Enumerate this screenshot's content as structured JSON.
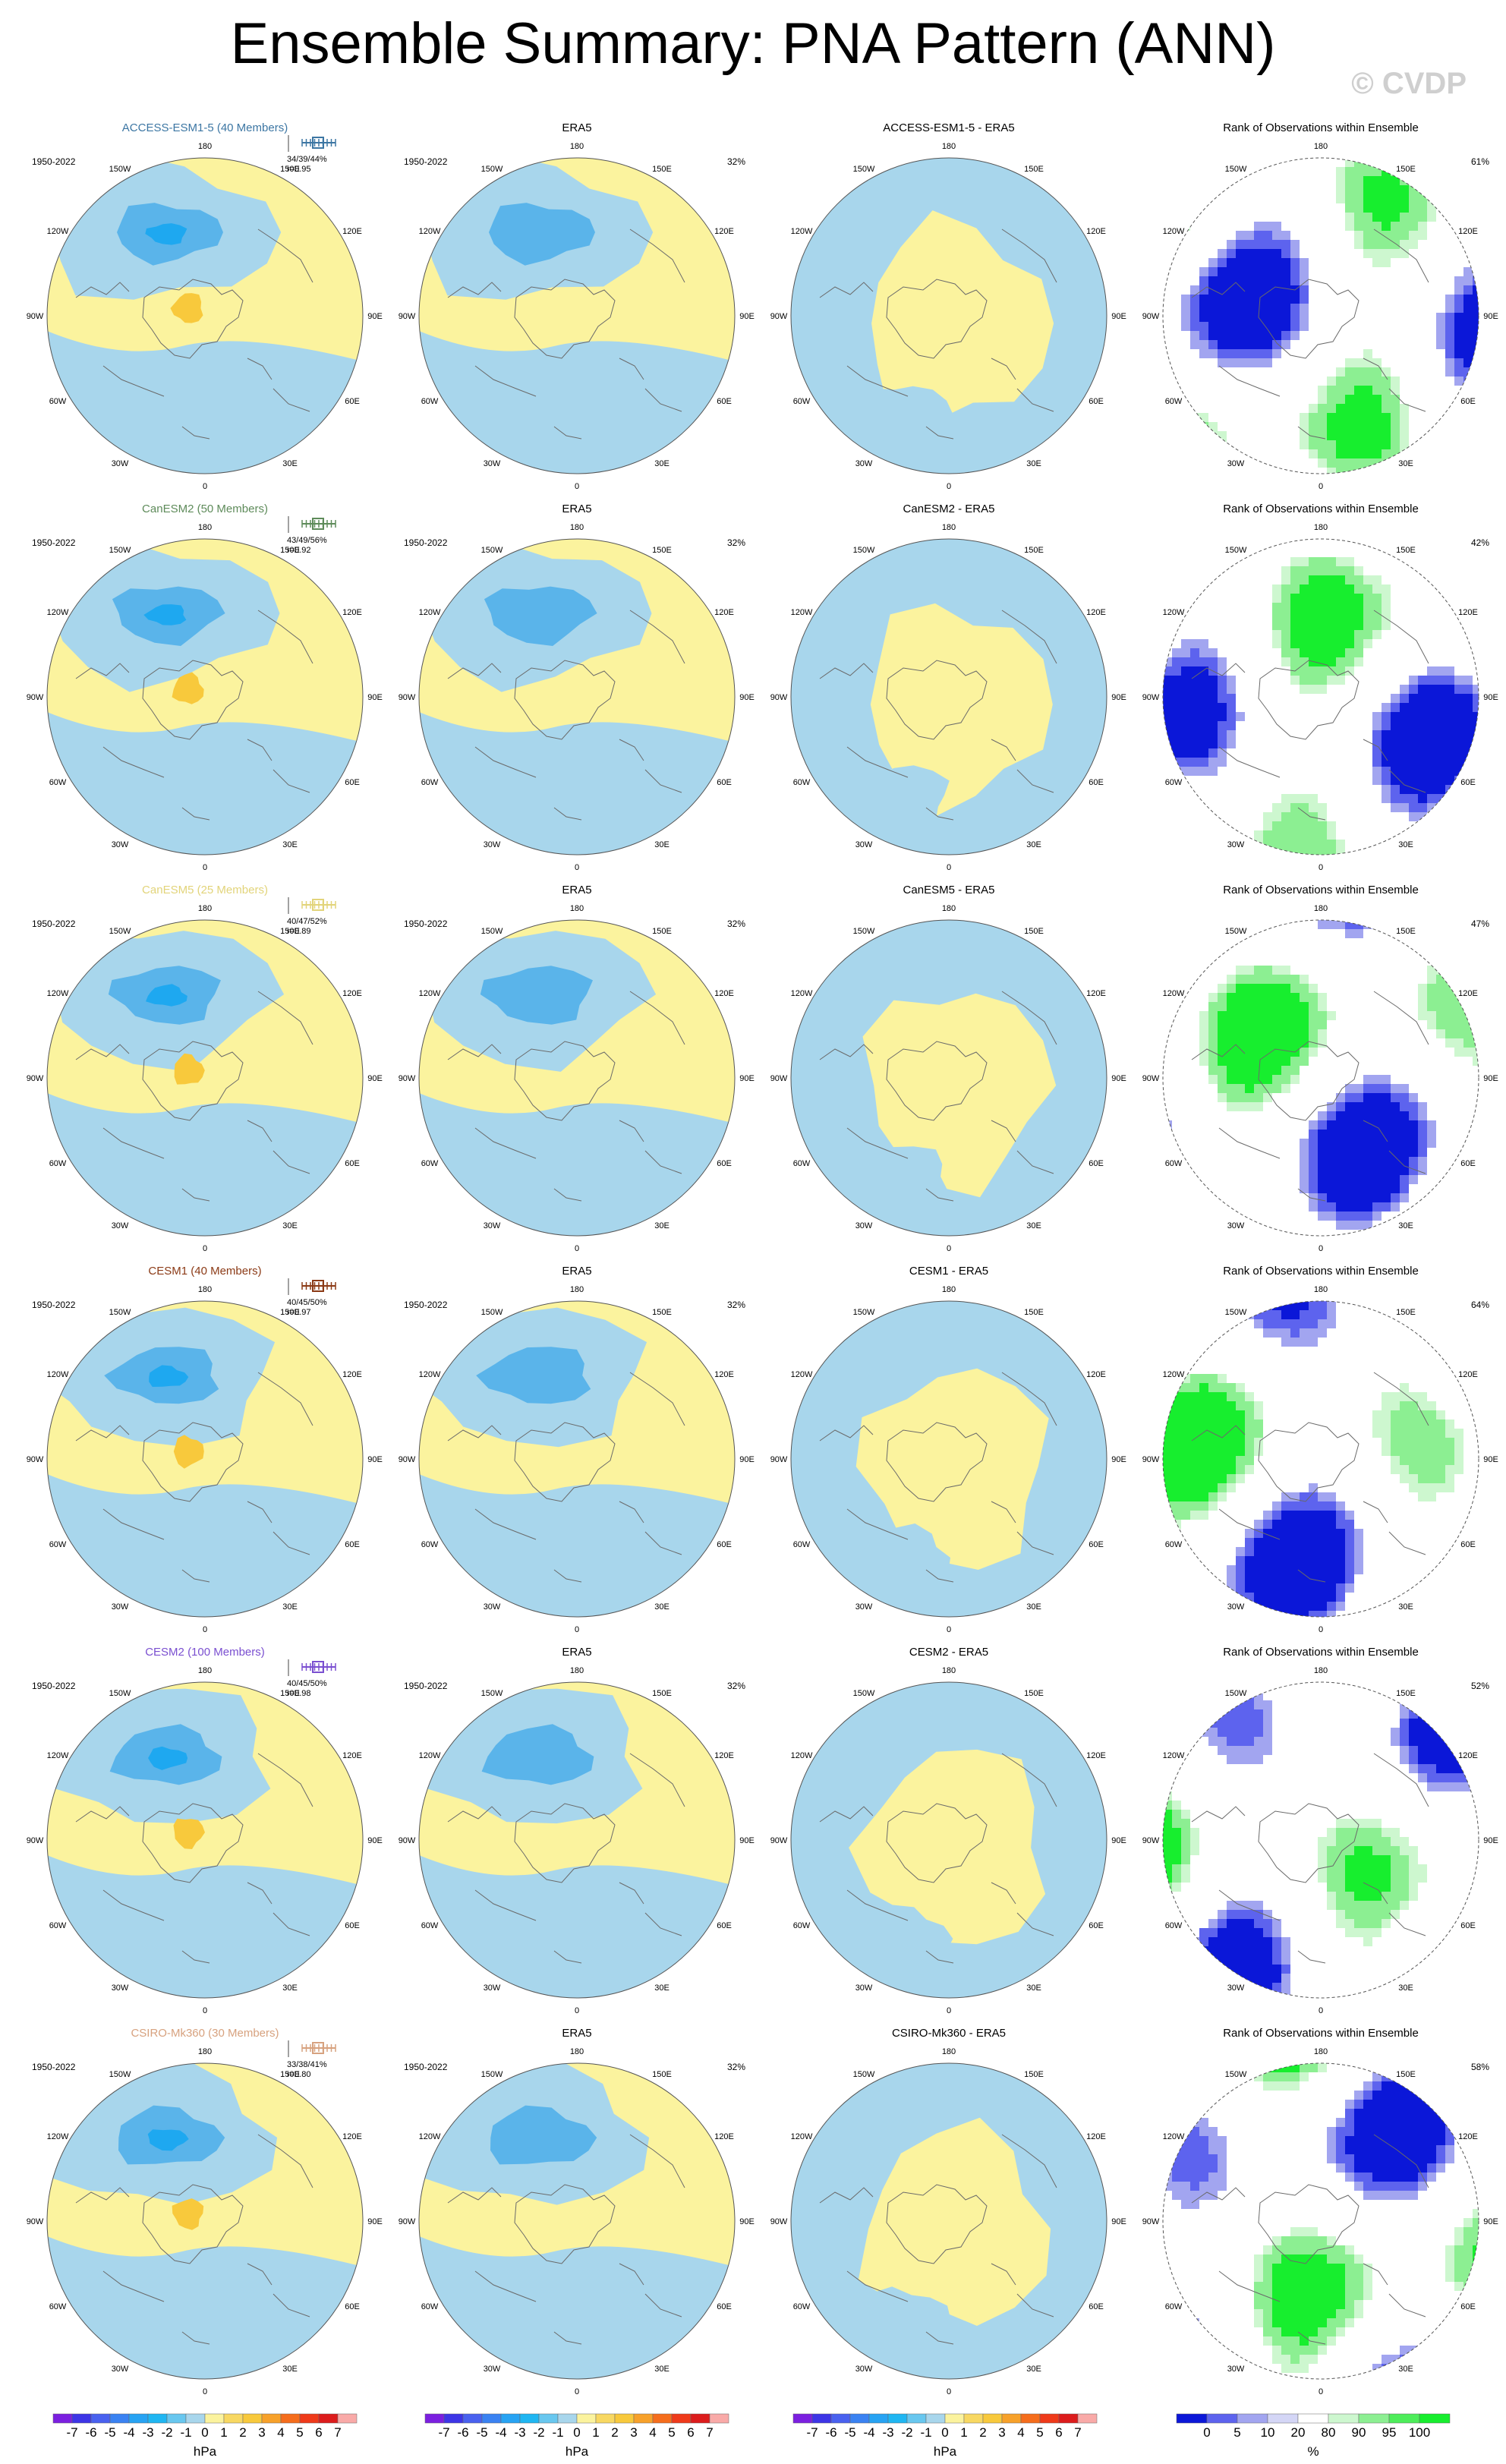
{
  "header": {
    "title": "Ensemble Summary: PNA Pattern (ANN)",
    "watermark": "© CVDP"
  },
  "colors": {
    "light_blue": "#a8d6ec",
    "mid_blue": "#5ab4ea",
    "deep_blue": "#1ea8f0",
    "light_yellow": "#fbf39e",
    "mid_yellow": "#f8c93c",
    "rank_blue": "#0b17d8",
    "rank_green": "#17ee2e"
  },
  "rows": [
    {
      "model": "ACCESS-ESM1-5 (40 Members)",
      "model_color": "#3c76a3",
      "period": "1950-2022",
      "stats_pct": "34/39/44%",
      "stats_r": "r=0.95",
      "era_title": "ERA5",
      "era_period": "1950-2022",
      "era_pct": "32%",
      "diff_title": "ACCESS-ESM1-5 - ERA5",
      "rank_title": "Rank of Observations within Ensemble",
      "rank_pct": "61%"
    },
    {
      "model": "CanESM2 (50 Members)",
      "model_color": "#5e8b5a",
      "period": "1950-2022",
      "stats_pct": "43/49/56%",
      "stats_r": "r=0.92",
      "era_title": "ERA5",
      "era_period": "1950-2022",
      "era_pct": "32%",
      "diff_title": "CanESM2 - ERA5",
      "rank_title": "Rank of Observations within Ensemble",
      "rank_pct": "42%"
    },
    {
      "model": "CanESM5 (25 Members)",
      "model_color": "#e2d47a",
      "period": "1950-2022",
      "stats_pct": "40/47/52%",
      "stats_r": "r=0.89",
      "era_title": "ERA5",
      "era_period": "1950-2022",
      "era_pct": "32%",
      "diff_title": "CanESM5 - ERA5",
      "rank_title": "Rank of Observations within Ensemble",
      "rank_pct": "47%"
    },
    {
      "model": "CESM1 (40 Members)",
      "model_color": "#8b3a16",
      "period": "1950-2022",
      "stats_pct": "40/45/50%",
      "stats_r": "r=0.97",
      "era_title": "ERA5",
      "era_period": "1950-2022",
      "era_pct": "32%",
      "diff_title": "CESM1 - ERA5",
      "rank_title": "Rank of Observations within Ensemble",
      "rank_pct": "64%"
    },
    {
      "model": "CESM2 (100 Members)",
      "model_color": "#7a4fd0",
      "period": "1950-2022",
      "stats_pct": "40/45/50%",
      "stats_r": "r=0.98",
      "era_title": "ERA5",
      "era_period": "1950-2022",
      "era_pct": "32%",
      "diff_title": "CESM2 - ERA5",
      "rank_title": "Rank of Observations within Ensemble",
      "rank_pct": "52%"
    },
    {
      "model": "CSIRO-Mk360 (30 Members)",
      "model_color": "#d7a27f",
      "period": "1950-2022",
      "stats_pct": "33/38/41%",
      "stats_r": "r=0.80",
      "era_title": "ERA5",
      "era_period": "1950-2022",
      "era_pct": "32%",
      "diff_title": "CSIRO-Mk360 - ERA5",
      "rank_title": "Rank of Observations within Ensemble",
      "rank_pct": "58%"
    }
  ],
  "longitude_labels": [
    "180",
    "150E",
    "120E",
    "90E",
    "60E",
    "30E",
    "0",
    "30W",
    "60W",
    "90W",
    "120W",
    "150W"
  ],
  "colorbar_hpa": {
    "unit": "hPa",
    "labels": [
      "-7",
      "-6",
      "-5",
      "-4",
      "-3",
      "-2",
      "-1",
      "0",
      "1",
      "2",
      "3",
      "4",
      "5",
      "6",
      "7"
    ],
    "colors": [
      "#7b1fe0",
      "#3d35e6",
      "#4961ef",
      "#3a82f2",
      "#27a3f3",
      "#1fb6f2",
      "#68c7ef",
      "#a8d6ec",
      "#fbf39e",
      "#f8d862",
      "#f8c93c",
      "#f7a12a",
      "#f56d1c",
      "#ef3a1a",
      "#dc1c1c",
      "#f9aaa8"
    ]
  },
  "colorbar_rank": {
    "unit": "%",
    "labels": [
      "0",
      "5",
      "10",
      "20",
      "80",
      "90",
      "95",
      "100"
    ],
    "colors": [
      "#0b17d8",
      "#5d63ee",
      "#a2a5f0",
      "#d4d6f6",
      "#ffffff",
      "#cdf7cf",
      "#8cef92",
      "#4ded5a",
      "#17ee2e"
    ]
  }
}
